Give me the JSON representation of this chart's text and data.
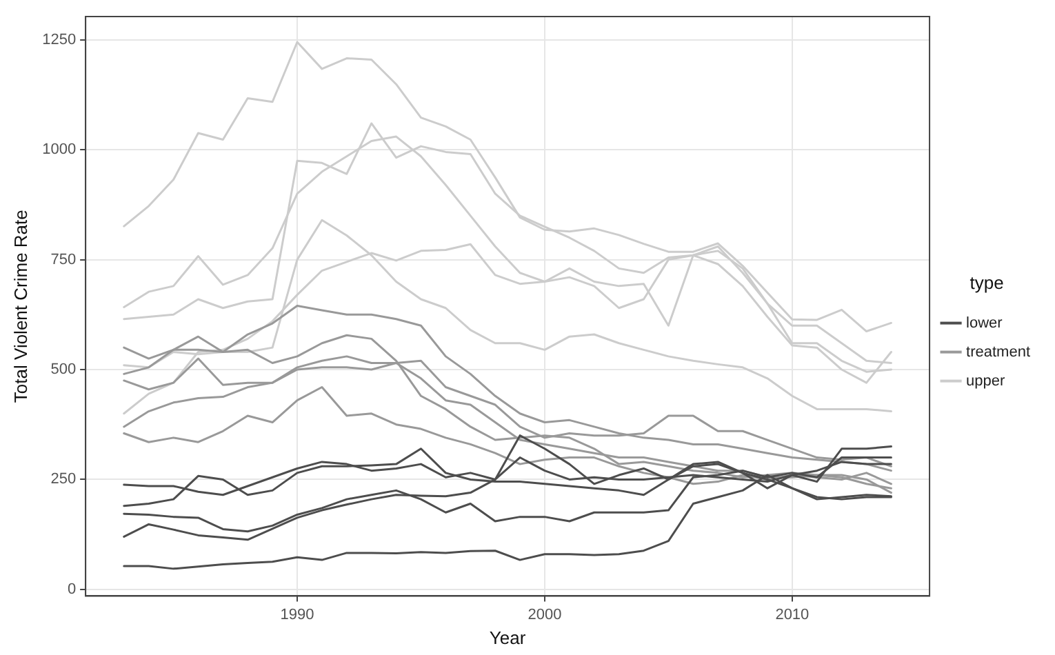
{
  "chart_data": {
    "type": "line",
    "xlabel": "Year",
    "ylabel": "Total Violent Crime Rate",
    "legend_title": "type",
    "legend": "right",
    "grid": true,
    "marker": "none",
    "line_style": "solid",
    "x": [
      1983,
      1984,
      1985,
      1986,
      1987,
      1988,
      1989,
      1990,
      1991,
      1992,
      1993,
      1994,
      1995,
      1996,
      1997,
      1998,
      1999,
      2000,
      2001,
      2002,
      2003,
      2004,
      2005,
      2006,
      2007,
      2008,
      2009,
      2010,
      2011,
      2012,
      2013,
      2014
    ],
    "xlim": [
      1981.45,
      2015.55
    ],
    "xticks": [
      1990,
      2000,
      2010
    ],
    "ylim": [
      -15,
      1303
    ],
    "yticks": [
      0,
      250,
      500,
      750,
      1000,
      1250
    ],
    "series": [
      {
        "name": "lower",
        "color": "#4d4d4d",
        "values": [
          238,
          235,
          235,
          222,
          215,
          235,
          255,
          275,
          290,
          285,
          270,
          275,
          285,
          255,
          265,
          250,
          350,
          320,
          285,
          240,
          260,
          275,
          250,
          285,
          290,
          265,
          230,
          260,
          245,
          320,
          320,
          325
        ]
      },
      {
        "color": "#4d4d4d",
        "values": [
          190,
          195,
          205,
          258,
          250,
          215,
          225,
          265,
          280,
          280,
          282,
          285,
          320,
          265,
          250,
          245,
          245,
          240,
          235,
          230,
          225,
          215,
          250,
          280,
          285,
          265,
          250,
          230,
          210,
          205,
          210,
          210
        ]
      },
      {
        "color": "#4d4d4d",
        "values": [
          172,
          170,
          165,
          163,
          137,
          132,
          145,
          170,
          185,
          205,
          215,
          225,
          205,
          175,
          195,
          155,
          165,
          165,
          155,
          175,
          175,
          175,
          180,
          255,
          260,
          270,
          255,
          265,
          255,
          300,
          300,
          300
        ]
      },
      {
        "color": "#4d4d4d",
        "values": [
          120,
          148,
          136,
          123,
          118,
          113,
          138,
          163,
          180,
          193,
          205,
          215,
          213,
          212,
          220,
          250,
          300,
          270,
          250,
          255,
          250,
          250,
          255,
          260,
          255,
          250,
          245,
          260,
          270,
          290,
          285,
          285
        ]
      },
      {
        "color": "#4d4d4d",
        "values": [
          53,
          53,
          47,
          52,
          57,
          60,
          63,
          73,
          67,
          83,
          83,
          82,
          85,
          83,
          87,
          88,
          67,
          80,
          80,
          78,
          80,
          88,
          110,
          195,
          210,
          225,
          260,
          230,
          205,
          210,
          215,
          212
        ]
      },
      {
        "name": "treatment",
        "color": "#999999",
        "values": [
          550,
          525,
          545,
          575,
          540,
          580,
          605,
          645,
          635,
          625,
          625,
          615,
          600,
          530,
          490,
          440,
          400,
          380,
          385,
          370,
          355,
          345,
          340,
          330,
          330,
          320,
          310,
          300,
          295,
          290,
          285,
          270
        ]
      },
      {
        "color": "#999999",
        "values": [
          490,
          505,
          545,
          545,
          540,
          545,
          515,
          530,
          560,
          578,
          570,
          520,
          440,
          410,
          370,
          340,
          345,
          350,
          345,
          320,
          285,
          290,
          280,
          270,
          265,
          255,
          260,
          265,
          260,
          255,
          240,
          230
        ]
      },
      {
        "color": "#999999",
        "values": [
          475,
          455,
          470,
          525,
          465,
          470,
          470,
          505,
          520,
          530,
          515,
          515,
          520,
          460,
          440,
          420,
          370,
          345,
          355,
          350,
          350,
          355,
          395,
          395,
          360,
          360,
          340,
          320,
          300,
          295,
          300,
          280
        ]
      },
      {
        "color": "#999999",
        "values": [
          370,
          405,
          425,
          435,
          438,
          460,
          470,
          500,
          505,
          505,
          500,
          515,
          480,
          430,
          420,
          380,
          340,
          330,
          320,
          310,
          300,
          300,
          290,
          280,
          270,
          270,
          255,
          255,
          260,
          260,
          250,
          220
        ]
      },
      {
        "color": "#999999",
        "values": [
          355,
          335,
          345,
          335,
          360,
          395,
          380,
          430,
          460,
          395,
          400,
          375,
          365,
          345,
          330,
          310,
          285,
          295,
          300,
          300,
          280,
          265,
          255,
          240,
          245,
          260,
          250,
          260,
          255,
          250,
          265,
          240
        ]
      },
      {
        "name": "upper",
        "color": "#cccccc",
        "values": [
          826,
          872,
          932,
          1038,
          1023,
          1117,
          1109,
          1245,
          1184,
          1208,
          1205,
          1149,
          1073,
          1053,
          1023,
          937,
          846,
          818,
          814,
          821,
          806,
          786,
          768,
          768,
          787,
          736,
          675,
          614,
          613,
          636,
          587,
          606
        ]
      },
      {
        "color": "#cccccc",
        "values": [
          642,
          677,
          690,
          758,
          693,
          715,
          776,
          900,
          950,
          985,
          1020,
          1030,
          985,
          920,
          850,
          780,
          720,
          700,
          710,
          690,
          640,
          660,
          750,
          760,
          740,
          690,
          620,
          555,
          550,
          500,
          470,
          540
        ]
      },
      {
        "color": "#cccccc",
        "values": [
          615,
          620,
          625,
          660,
          640,
          655,
          660,
          975,
          970,
          945,
          1060,
          982,
          1008,
          995,
          990,
          900,
          850,
          825,
          800,
          770,
          730,
          720,
          755,
          760,
          780,
          720,
          650,
          600,
          600,
          560,
          520,
          515
        ]
      },
      {
        "color": "#cccccc",
        "values": [
          510,
          505,
          540,
          535,
          540,
          540,
          550,
          750,
          840,
          805,
          760,
          700,
          660,
          640,
          590,
          560,
          560,
          545,
          575,
          580,
          560,
          545,
          530,
          520,
          512,
          505,
          480,
          440,
          410,
          410,
          410,
          405
        ]
      },
      {
        "color": "#cccccc",
        "values": [
          400,
          445,
          470,
          540,
          545,
          570,
          610,
          670,
          725,
          745,
          765,
          748,
          770,
          772,
          785,
          715,
          695,
          700,
          730,
          700,
          690,
          695,
          600,
          760,
          770,
          730,
          650,
          560,
          560,
          520,
          495,
          500
        ]
      }
    ]
  }
}
